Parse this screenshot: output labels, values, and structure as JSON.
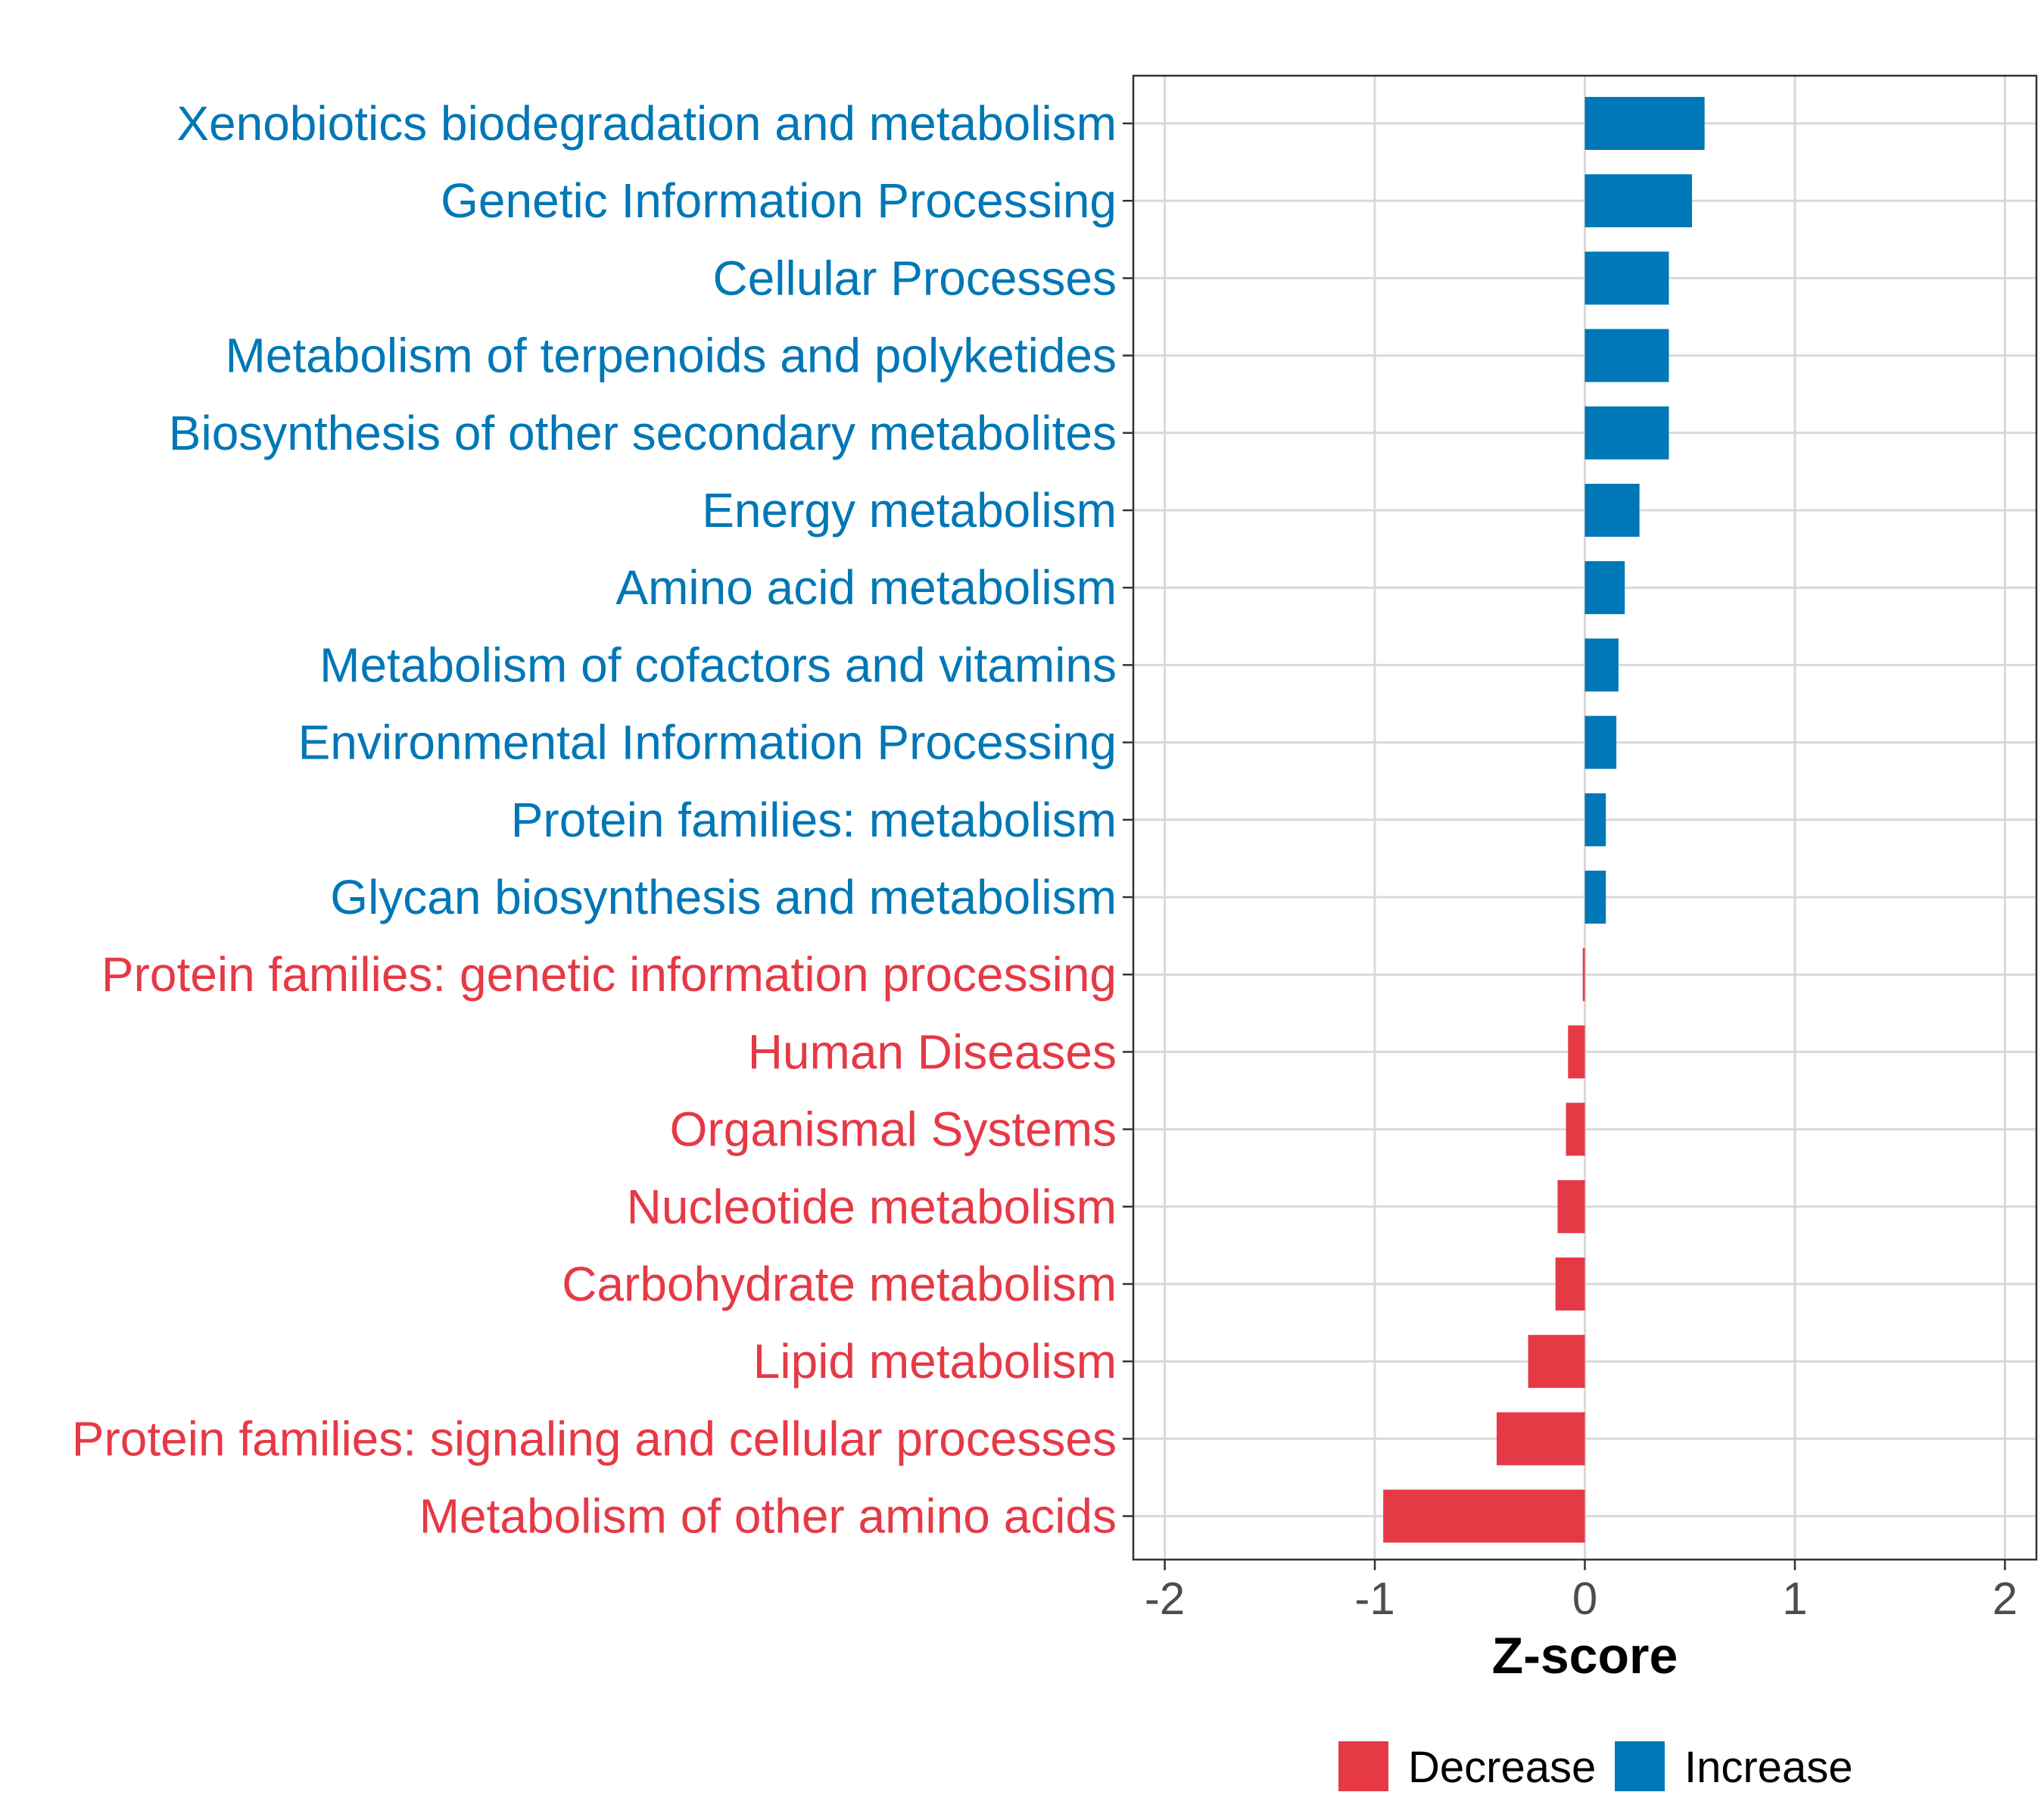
{
  "chart_data": {
    "type": "bar",
    "orientation": "horizontal",
    "title": "",
    "xlabel": "Z-score",
    "ylabel": "",
    "xlim": [
      -2.15,
      2.15
    ],
    "x_ticks": [
      -2,
      -1,
      0,
      1,
      2
    ],
    "x_tick_labels": [
      "-2",
      "-1",
      "0",
      "1",
      "2"
    ],
    "grid": true,
    "legend_position": "bottom",
    "colors": {
      "Decrease": "#e63946",
      "Increase": "#0077b6"
    },
    "categories": [
      "Xenobiotics biodegradation and metabolism",
      "Genetic Information Processing",
      "Cellular Processes",
      "Metabolism of terpenoids and polyketides",
      "Biosynthesis of other secondary metabolites",
      "Energy metabolism",
      "Amino acid metabolism",
      "Metabolism of cofactors and vitamins",
      "Environmental Information Processing",
      "Protein families: metabolism",
      "Glycan biosynthesis and metabolism",
      "Protein families: genetic information processing",
      "Human Diseases",
      "Organismal Systems",
      "Nucleotide metabolism",
      "Carbohydrate metabolism",
      "Lipid metabolism",
      "Protein families: signaling and cellular processes",
      "Metabolism of other amino acids"
    ],
    "values": [
      0.57,
      0.51,
      0.4,
      0.4,
      0.4,
      0.26,
      0.19,
      0.16,
      0.15,
      0.1,
      0.1,
      -0.01,
      -0.08,
      -0.09,
      -0.13,
      -0.14,
      -0.27,
      -0.42,
      -0.96
    ],
    "groups": [
      "Increase",
      "Increase",
      "Increase",
      "Increase",
      "Increase",
      "Increase",
      "Increase",
      "Increase",
      "Increase",
      "Increase",
      "Increase",
      "Decrease",
      "Decrease",
      "Decrease",
      "Decrease",
      "Decrease",
      "Decrease",
      "Decrease",
      "Decrease"
    ],
    "legend": [
      {
        "name": "Decrease",
        "color": "#e63946"
      },
      {
        "name": "Increase",
        "color": "#0077b6"
      }
    ]
  }
}
